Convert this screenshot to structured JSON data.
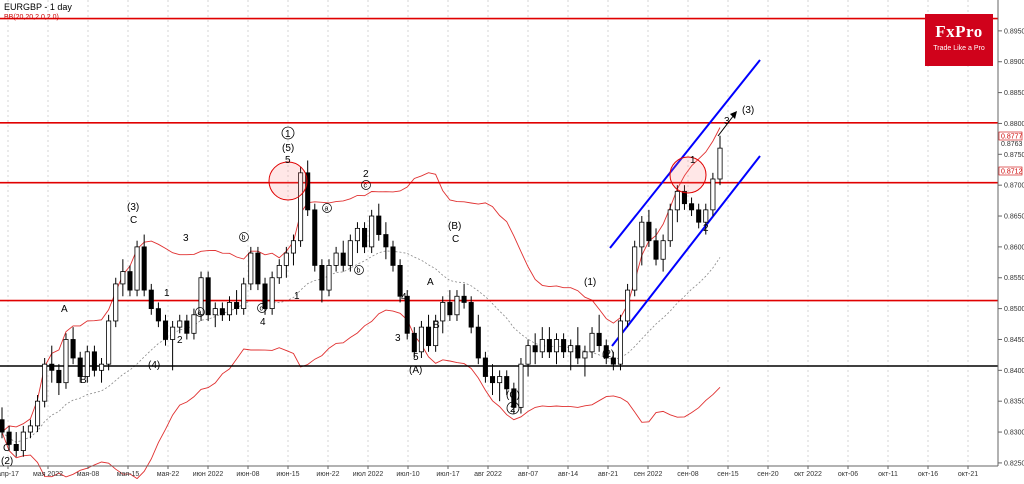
{
  "header": {
    "title": "EURGBP - 1 day",
    "indicator": "BB(20,20,2.0,2.0)"
  },
  "logo": {
    "brand": "FxPro",
    "slogan": "Trade Like a Pro"
  },
  "colors": {
    "bull_candle": "#ffffff",
    "bear_candle": "#000000",
    "bands": "#e03030",
    "mid_band": "#888888",
    "levels": "#e00000",
    "support": "#000000",
    "channel": "#0000ff",
    "logo_bg": "#d0021b"
  },
  "chart_data": {
    "type": "candlestick",
    "symbol": "EURGBP",
    "timeframe": "1 day",
    "ylim": [
      0.8245,
      0.9
    ],
    "y_ticks": [
      "0.8250",
      "0.8300",
      "0.8350",
      "0.8400",
      "0.8450",
      "0.8500",
      "0.8550",
      "0.8600",
      "0.8650",
      "0.8700",
      "0.8750",
      "0.8800",
      "0.8850",
      "0.8900",
      "0.8950"
    ],
    "x_ticks": [
      "апр-17",
      "мая 2022",
      "мая-08",
      "мая-15",
      "мая-22",
      "июн 2022",
      "июн-08",
      "июн-15",
      "июн-22",
      "июл 2022",
      "июл-10",
      "июл-17",
      "авг 2022",
      "авг-07",
      "авг-14",
      "авг-21",
      "сен 2022",
      "сен-08",
      "сен-15",
      "сен-20",
      "окт 2022",
      "окт-06",
      "окт-11",
      "окт-16",
      "окт-21"
    ],
    "price_badges": [
      "0.8777",
      "0.8763",
      "0.8712"
    ],
    "candles": [
      [
        0.832,
        0.834,
        0.829,
        0.83
      ],
      [
        0.83,
        0.831,
        0.827,
        0.828
      ],
      [
        0.828,
        0.83,
        0.826,
        0.827
      ],
      [
        0.827,
        0.831,
        0.826,
        0.83
      ],
      [
        0.83,
        0.832,
        0.829,
        0.831
      ],
      [
        0.831,
        0.836,
        0.83,
        0.835
      ],
      [
        0.835,
        0.842,
        0.834,
        0.841
      ],
      [
        0.841,
        0.844,
        0.838,
        0.84
      ],
      [
        0.84,
        0.841,
        0.836,
        0.838
      ],
      [
        0.838,
        0.846,
        0.837,
        0.845
      ],
      [
        0.845,
        0.847,
        0.841,
        0.842
      ],
      [
        0.842,
        0.843,
        0.838,
        0.839
      ],
      [
        0.839,
        0.844,
        0.838,
        0.843
      ],
      [
        0.843,
        0.844,
        0.839,
        0.84
      ],
      [
        0.84,
        0.842,
        0.838,
        0.841
      ],
      [
        0.841,
        0.849,
        0.84,
        0.848
      ],
      [
        0.848,
        0.855,
        0.847,
        0.854
      ],
      [
        0.854,
        0.858,
        0.852,
        0.856
      ],
      [
        0.856,
        0.857,
        0.852,
        0.853
      ],
      [
        0.853,
        0.861,
        0.852,
        0.86
      ],
      [
        0.86,
        0.862,
        0.852,
        0.853
      ],
      [
        0.853,
        0.854,
        0.849,
        0.85
      ],
      [
        0.85,
        0.851,
        0.847,
        0.848
      ],
      [
        0.848,
        0.849,
        0.844,
        0.845
      ],
      [
        0.845,
        0.848,
        0.84,
        0.847
      ],
      [
        0.847,
        0.849,
        0.846,
        0.848
      ],
      [
        0.848,
        0.849,
        0.845,
        0.846
      ],
      [
        0.846,
        0.85,
        0.845,
        0.849
      ],
      [
        0.849,
        0.856,
        0.848,
        0.855
      ],
      [
        0.855,
        0.856,
        0.848,
        0.849
      ],
      [
        0.849,
        0.851,
        0.847,
        0.85
      ],
      [
        0.85,
        0.851,
        0.848,
        0.849
      ],
      [
        0.849,
        0.852,
        0.848,
        0.851
      ],
      [
        0.851,
        0.853,
        0.849,
        0.85
      ],
      [
        0.85,
        0.855,
        0.849,
        0.854
      ],
      [
        0.854,
        0.86,
        0.853,
        0.859
      ],
      [
        0.859,
        0.86,
        0.853,
        0.854
      ],
      [
        0.854,
        0.855,
        0.849,
        0.85
      ],
      [
        0.85,
        0.856,
        0.849,
        0.855
      ],
      [
        0.855,
        0.858,
        0.854,
        0.857
      ],
      [
        0.857,
        0.86,
        0.855,
        0.859
      ],
      [
        0.859,
        0.862,
        0.857,
        0.861
      ],
      [
        0.861,
        0.873,
        0.86,
        0.872
      ],
      [
        0.872,
        0.874,
        0.865,
        0.866
      ],
      [
        0.866,
        0.867,
        0.856,
        0.857
      ],
      [
        0.857,
        0.858,
        0.851,
        0.853
      ],
      [
        0.853,
        0.858,
        0.852,
        0.857
      ],
      [
        0.857,
        0.86,
        0.856,
        0.859
      ],
      [
        0.859,
        0.861,
        0.856,
        0.857
      ],
      [
        0.857,
        0.862,
        0.856,
        0.861
      ],
      [
        0.861,
        0.864,
        0.859,
        0.863
      ],
      [
        0.863,
        0.864,
        0.859,
        0.86
      ],
      [
        0.86,
        0.866,
        0.859,
        0.865
      ],
      [
        0.865,
        0.867,
        0.861,
        0.862
      ],
      [
        0.862,
        0.864,
        0.858,
        0.86
      ],
      [
        0.86,
        0.861,
        0.856,
        0.857
      ],
      [
        0.857,
        0.858,
        0.851,
        0.852
      ],
      [
        0.852,
        0.853,
        0.845,
        0.846
      ],
      [
        0.846,
        0.847,
        0.842,
        0.843
      ],
      [
        0.843,
        0.848,
        0.842,
        0.847
      ],
      [
        0.847,
        0.849,
        0.843,
        0.844
      ],
      [
        0.844,
        0.849,
        0.843,
        0.848
      ],
      [
        0.848,
        0.852,
        0.846,
        0.851
      ],
      [
        0.851,
        0.853,
        0.848,
        0.849
      ],
      [
        0.849,
        0.853,
        0.848,
        0.852
      ],
      [
        0.852,
        0.854,
        0.85,
        0.851
      ],
      [
        0.851,
        0.852,
        0.846,
        0.847
      ],
      [
        0.847,
        0.849,
        0.841,
        0.842
      ],
      [
        0.842,
        0.843,
        0.838,
        0.839
      ],
      [
        0.839,
        0.841,
        0.836,
        0.838
      ],
      [
        0.838,
        0.84,
        0.835,
        0.839
      ],
      [
        0.839,
        0.84,
        0.836,
        0.837
      ],
      [
        0.837,
        0.838,
        0.833,
        0.834
      ],
      [
        0.834,
        0.842,
        0.833,
        0.841
      ],
      [
        0.841,
        0.845,
        0.839,
        0.844
      ],
      [
        0.844,
        0.846,
        0.841,
        0.843
      ],
      [
        0.843,
        0.847,
        0.842,
        0.845
      ],
      [
        0.845,
        0.847,
        0.842,
        0.843
      ],
      [
        0.843,
        0.846,
        0.841,
        0.845
      ],
      [
        0.845,
        0.846,
        0.842,
        0.843
      ],
      [
        0.843,
        0.845,
        0.84,
        0.844
      ],
      [
        0.844,
        0.847,
        0.841,
        0.842
      ],
      [
        0.842,
        0.844,
        0.839,
        0.843
      ],
      [
        0.843,
        0.847,
        0.842,
        0.846
      ],
      [
        0.846,
        0.849,
        0.843,
        0.844
      ],
      [
        0.844,
        0.845,
        0.841,
        0.842
      ],
      [
        0.842,
        0.843,
        0.84,
        0.841
      ],
      [
        0.841,
        0.849,
        0.84,
        0.848
      ],
      [
        0.848,
        0.854,
        0.847,
        0.853
      ],
      [
        0.853,
        0.861,
        0.852,
        0.86
      ],
      [
        0.86,
        0.865,
        0.857,
        0.864
      ],
      [
        0.864,
        0.866,
        0.86,
        0.861
      ],
      [
        0.861,
        0.863,
        0.857,
        0.858
      ],
      [
        0.858,
        0.862,
        0.856,
        0.861
      ],
      [
        0.861,
        0.867,
        0.86,
        0.866
      ],
      [
        0.866,
        0.87,
        0.864,
        0.869
      ],
      [
        0.869,
        0.87,
        0.866,
        0.867
      ],
      [
        0.867,
        0.868,
        0.865,
        0.866
      ],
      [
        0.866,
        0.867,
        0.863,
        0.864
      ],
      [
        0.864,
        0.867,
        0.862,
        0.866
      ],
      [
        0.866,
        0.872,
        0.865,
        0.871
      ],
      [
        0.871,
        0.878,
        0.87,
        0.876
      ]
    ]
  },
  "labels": {
    "C_left": "C",
    "two_paren_left": "(2)",
    "A_1": "A",
    "B_1": "B",
    "three_paren": "(3)",
    "C_1": "C",
    "four_paren": "(4)",
    "one_a": "1",
    "two_a": "2",
    "three_a": "3",
    "a_circ1": "a",
    "b_circ1": "b",
    "c_circ1": "c",
    "four_a": "4",
    "one_circ": "1",
    "five_paren": "(5)",
    "five_a": "5",
    "one_b": "1",
    "two_b": "2",
    "c_circ2": "c",
    "a_circ2": "a",
    "b_circ2": "b",
    "B_paren": "(B)",
    "C_2": "C",
    "A_2": "A",
    "B_2": "B",
    "four_b": "4",
    "three_b": "3",
    "five_b": "5",
    "A_paren": "(A)",
    "C_paren": "(C)",
    "two_circ": "2",
    "one_paren": "(1)",
    "two_paren": "(2)",
    "one_c": "1",
    "two_c": "2",
    "three_paren_right": "(3)",
    "three_c": "3"
  }
}
